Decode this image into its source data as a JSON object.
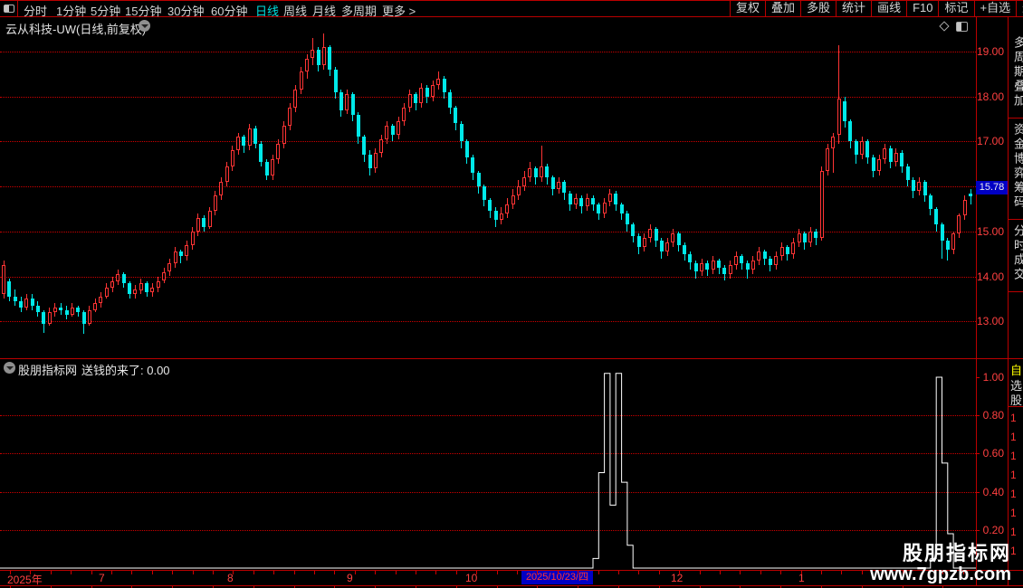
{
  "toolbar": {
    "periods": [
      {
        "label": "分时",
        "active": false
      },
      {
        "label": "1分钟",
        "active": false
      },
      {
        "label": "5分钟",
        "active": false
      },
      {
        "label": "15分钟",
        "active": false
      },
      {
        "label": "30分钟",
        "active": false
      },
      {
        "label": "60分钟",
        "active": false
      },
      {
        "label": "日线",
        "active": true
      },
      {
        "label": "周线",
        "active": false
      },
      {
        "label": "月线",
        "active": false
      },
      {
        "label": "多周期",
        "active": false
      },
      {
        "label": "更多 >",
        "active": false
      }
    ],
    "right_buttons": [
      "复权",
      "叠加",
      "多股",
      "统计",
      "画线",
      "F10",
      "标记",
      "+自选",
      "返回"
    ]
  },
  "title": {
    "text": "云从科技-UW(日线,前复权)"
  },
  "price_axis": {
    "labels": [
      "19.00",
      "18.00",
      "17.00",
      "15.00",
      "14.00",
      "13.00"
    ],
    "current_price": "15.78"
  },
  "indicator_panel": {
    "source": "股朋指标网",
    "name": "送钱的来了",
    "value": "0.00",
    "display": "送钱的来了: 0.00",
    "axis_labels": [
      "1.00",
      "0.80",
      "0.60",
      "0.40",
      "0.20"
    ]
  },
  "time_axis": {
    "month_labels": [
      "2025年",
      "7",
      "8",
      "9",
      "10",
      "12",
      "1"
    ],
    "selected_date": "2025/10/23/四"
  },
  "watermark": {
    "line1": "股朋指标网",
    "line2": "www.7gpzb.com"
  },
  "right_sidebar": {
    "top_tabs": [
      "多周期叠加",
      "资金博弈筹码",
      "分时成交"
    ],
    "watch_tab": "自选股",
    "quote_digits": [
      "1",
      "1",
      "1",
      "1",
      "1",
      "1",
      "1",
      "1"
    ]
  },
  "colors": {
    "background": "#000000",
    "grid_red": "#cf0000",
    "label_red": "#ff4040",
    "up_candle": "#ff3434",
    "down_candle": "#00e9e9",
    "highlight_blue": "#0000c4",
    "active_cyan": "#00e0e0",
    "indicator_line": "#ffffff",
    "watch_yellow": "#ffff00"
  },
  "chart_data": [
    {
      "type": "candlestick",
      "title": "云从科技-UW 日线 前复权",
      "ylim": [
        12.2,
        19.4
      ],
      "y_gridlines": [
        13,
        14,
        15,
        16,
        17,
        18,
        19
      ],
      "last_close": 15.78,
      "x_tick_labels": [
        "2025年",
        "7",
        "8",
        "9",
        "10",
        "2025/10/23/四",
        "12",
        "1"
      ],
      "up_color": "#ff3434",
      "down_color": "#00e9e9",
      "ohlc": [
        [
          13.6,
          14.35,
          13.5,
          14.25
        ],
        [
          13.9,
          13.95,
          13.45,
          13.55
        ],
        [
          13.55,
          13.7,
          13.35,
          13.45
        ],
        [
          13.45,
          13.55,
          13.2,
          13.3
        ],
        [
          13.3,
          13.6,
          13.25,
          13.5
        ],
        [
          13.5,
          13.6,
          13.25,
          13.35
        ],
        [
          13.35,
          13.45,
          13.1,
          13.2
        ],
        [
          13.2,
          13.25,
          12.75,
          12.95
        ],
        [
          12.95,
          13.3,
          12.9,
          13.2
        ],
        [
          13.2,
          13.4,
          13.1,
          13.3
        ],
        [
          13.3,
          13.4,
          13.15,
          13.25
        ],
        [
          13.25,
          13.35,
          13.05,
          13.15
        ],
        [
          13.15,
          13.4,
          13.1,
          13.3
        ],
        [
          13.3,
          13.35,
          13.1,
          13.2
        ],
        [
          13.2,
          13.25,
          12.72,
          12.95
        ],
        [
          12.95,
          13.35,
          12.9,
          13.25
        ],
        [
          13.25,
          13.5,
          13.2,
          13.4
        ],
        [
          13.4,
          13.65,
          13.3,
          13.55
        ],
        [
          13.55,
          13.85,
          13.5,
          13.75
        ],
        [
          13.75,
          14.0,
          13.65,
          13.9
        ],
        [
          13.9,
          14.15,
          13.8,
          14.05
        ],
        [
          14.05,
          14.1,
          13.75,
          13.85
        ],
        [
          13.85,
          13.9,
          13.5,
          13.6
        ],
        [
          13.6,
          13.8,
          13.5,
          13.7
        ],
        [
          13.7,
          13.95,
          13.6,
          13.85
        ],
        [
          13.85,
          13.9,
          13.55,
          13.65
        ],
        [
          13.65,
          13.85,
          13.55,
          13.75
        ],
        [
          13.75,
          14.0,
          13.65,
          13.9
        ],
        [
          13.9,
          14.2,
          13.85,
          14.1
        ],
        [
          14.1,
          14.4,
          14.0,
          14.3
        ],
        [
          14.3,
          14.65,
          14.2,
          14.55
        ],
        [
          14.55,
          14.6,
          14.3,
          14.45
        ],
        [
          14.45,
          14.8,
          14.35,
          14.7
        ],
        [
          14.7,
          15.1,
          14.6,
          15.0
        ],
        [
          15.0,
          15.4,
          14.9,
          15.3
        ],
        [
          15.3,
          15.35,
          15.0,
          15.1
        ],
        [
          15.1,
          15.55,
          15.05,
          15.45
        ],
        [
          15.45,
          15.9,
          15.35,
          15.8
        ],
        [
          15.8,
          16.2,
          15.7,
          16.1
        ],
        [
          16.1,
          16.55,
          16.0,
          16.45
        ],
        [
          16.45,
          16.9,
          16.35,
          16.8
        ],
        [
          16.8,
          17.2,
          16.7,
          17.1
        ],
        [
          17.1,
          17.15,
          16.75,
          16.9
        ],
        [
          16.9,
          17.4,
          16.8,
          17.3
        ],
        [
          17.3,
          17.35,
          16.85,
          16.95
        ],
        [
          16.95,
          17.0,
          16.45,
          16.55
        ],
        [
          16.55,
          16.6,
          16.15,
          16.25
        ],
        [
          16.25,
          16.7,
          16.15,
          16.6
        ],
        [
          16.6,
          17.05,
          16.5,
          16.95
        ],
        [
          16.95,
          17.45,
          16.85,
          17.35
        ],
        [
          17.35,
          17.85,
          17.25,
          17.75
        ],
        [
          17.75,
          18.25,
          17.65,
          18.15
        ],
        [
          18.15,
          18.65,
          18.05,
          18.55
        ],
        [
          18.55,
          18.95,
          18.4,
          18.85
        ],
        [
          18.85,
          19.3,
          18.7,
          19.05
        ],
        [
          19.05,
          19.1,
          18.55,
          18.7
        ],
        [
          18.7,
          19.4,
          18.6,
          19.1
        ],
        [
          19.1,
          19.15,
          18.45,
          18.6
        ],
        [
          18.6,
          18.65,
          17.95,
          18.1
        ],
        [
          18.1,
          18.15,
          17.55,
          17.7
        ],
        [
          17.7,
          18.15,
          17.6,
          18.05
        ],
        [
          18.05,
          18.1,
          17.45,
          17.6
        ],
        [
          17.6,
          17.65,
          16.95,
          17.1
        ],
        [
          17.1,
          17.15,
          16.55,
          16.7
        ],
        [
          16.7,
          16.8,
          16.25,
          16.4
        ],
        [
          16.4,
          16.85,
          16.3,
          16.75
        ],
        [
          16.75,
          17.15,
          16.65,
          17.05
        ],
        [
          17.05,
          17.45,
          16.95,
          17.35
        ],
        [
          17.35,
          17.4,
          17.0,
          17.15
        ],
        [
          17.15,
          17.55,
          17.05,
          17.45
        ],
        [
          17.45,
          17.85,
          17.35,
          17.75
        ],
        [
          17.75,
          18.15,
          17.65,
          18.05
        ],
        [
          18.05,
          18.1,
          17.7,
          17.85
        ],
        [
          17.85,
          18.3,
          17.75,
          18.2
        ],
        [
          18.2,
          18.25,
          17.85,
          18.0
        ],
        [
          18.0,
          18.35,
          17.9,
          18.25
        ],
        [
          18.25,
          18.55,
          18.15,
          18.4
        ],
        [
          18.4,
          18.45,
          17.95,
          18.1
        ],
        [
          18.1,
          18.15,
          17.6,
          17.75
        ],
        [
          17.75,
          17.8,
          17.25,
          17.4
        ],
        [
          17.4,
          17.45,
          16.85,
          17.0
        ],
        [
          17.0,
          17.05,
          16.5,
          16.65
        ],
        [
          16.65,
          16.7,
          16.15,
          16.3
        ],
        [
          16.3,
          16.35,
          15.85,
          16.0
        ],
        [
          16.0,
          16.05,
          15.55,
          15.7
        ],
        [
          15.7,
          15.75,
          15.3,
          15.45
        ],
        [
          15.45,
          15.55,
          15.1,
          15.25
        ],
        [
          15.25,
          15.55,
          15.15,
          15.4
        ],
        [
          15.4,
          15.75,
          15.3,
          15.6
        ],
        [
          15.6,
          15.95,
          15.5,
          15.8
        ],
        [
          15.8,
          16.15,
          15.7,
          16.0
        ],
        [
          16.0,
          16.35,
          15.9,
          16.2
        ],
        [
          16.2,
          16.55,
          16.1,
          16.4
        ],
        [
          16.4,
          16.45,
          16.05,
          16.2
        ],
        [
          16.2,
          16.9,
          16.1,
          16.45
        ],
        [
          16.45,
          16.5,
          16.05,
          16.2
        ],
        [
          16.2,
          16.25,
          15.8,
          15.95
        ],
        [
          15.95,
          16.2,
          15.85,
          16.1
        ],
        [
          16.1,
          16.15,
          15.7,
          15.85
        ],
        [
          15.85,
          15.9,
          15.45,
          15.6
        ],
        [
          15.6,
          15.85,
          15.5,
          15.75
        ],
        [
          15.75,
          15.8,
          15.4,
          15.55
        ],
        [
          15.55,
          15.85,
          15.45,
          15.75
        ],
        [
          15.75,
          15.8,
          15.45,
          15.6
        ],
        [
          15.6,
          15.65,
          15.25,
          15.4
        ],
        [
          15.4,
          15.75,
          15.3,
          15.65
        ],
        [
          15.65,
          15.95,
          15.55,
          15.85
        ],
        [
          15.85,
          15.9,
          15.45,
          15.6
        ],
        [
          15.6,
          15.65,
          15.25,
          15.4
        ],
        [
          15.4,
          15.45,
          15.0,
          15.15
        ],
        [
          15.15,
          15.2,
          14.75,
          14.9
        ],
        [
          14.9,
          14.95,
          14.5,
          14.65
        ],
        [
          14.65,
          14.95,
          14.55,
          14.85
        ],
        [
          14.85,
          15.15,
          14.75,
          15.05
        ],
        [
          15.05,
          15.1,
          14.65,
          14.8
        ],
        [
          14.8,
          14.85,
          14.4,
          14.55
        ],
        [
          14.55,
          14.85,
          14.45,
          14.75
        ],
        [
          14.75,
          15.05,
          14.65,
          14.95
        ],
        [
          14.95,
          15.0,
          14.55,
          14.7
        ],
        [
          14.7,
          14.75,
          14.35,
          14.5
        ],
        [
          14.5,
          14.55,
          14.15,
          14.3
        ],
        [
          14.3,
          14.35,
          13.95,
          14.1
        ],
        [
          14.1,
          14.4,
          14.0,
          14.3
        ],
        [
          14.3,
          14.35,
          14.0,
          14.15
        ],
        [
          14.15,
          14.45,
          14.05,
          14.35
        ],
        [
          14.35,
          14.4,
          14.05,
          14.2
        ],
        [
          14.2,
          14.25,
          13.9,
          14.05
        ],
        [
          14.05,
          14.35,
          13.95,
          14.25
        ],
        [
          14.25,
          14.55,
          14.15,
          14.45
        ],
        [
          14.45,
          14.5,
          14.15,
          14.3
        ],
        [
          14.3,
          14.35,
          13.95,
          14.15
        ],
        [
          14.15,
          14.45,
          14.05,
          14.35
        ],
        [
          14.35,
          14.65,
          14.25,
          14.55
        ],
        [
          14.55,
          14.6,
          14.25,
          14.4
        ],
        [
          14.4,
          14.45,
          14.1,
          14.25
        ],
        [
          14.25,
          14.55,
          14.15,
          14.45
        ],
        [
          14.45,
          14.75,
          14.35,
          14.65
        ],
        [
          14.65,
          14.7,
          14.35,
          14.5
        ],
        [
          14.5,
          14.85,
          14.4,
          14.75
        ],
        [
          14.75,
          15.05,
          14.65,
          14.95
        ],
        [
          14.95,
          15.0,
          14.6,
          14.75
        ],
        [
          14.75,
          15.1,
          14.65,
          15.0
        ],
        [
          15.0,
          15.05,
          14.7,
          14.85
        ],
        [
          14.85,
          16.45,
          14.8,
          16.35
        ],
        [
          16.35,
          16.95,
          16.25,
          16.85
        ],
        [
          16.85,
          17.2,
          16.3,
          17.1
        ],
        [
          17.15,
          19.15,
          16.95,
          17.95
        ],
        [
          17.9,
          18.0,
          17.3,
          17.45
        ],
        [
          17.45,
          17.5,
          16.85,
          17.0
        ],
        [
          17.0,
          17.05,
          16.5,
          16.7
        ],
        [
          16.7,
          17.1,
          16.6,
          17.0
        ],
        [
          17.0,
          17.05,
          16.5,
          16.65
        ],
        [
          16.65,
          16.7,
          16.2,
          16.35
        ],
        [
          16.35,
          16.7,
          16.25,
          16.6
        ],
        [
          16.6,
          16.95,
          16.5,
          16.85
        ],
        [
          16.85,
          16.9,
          16.4,
          16.55
        ],
        [
          16.55,
          16.85,
          16.45,
          16.75
        ],
        [
          16.75,
          16.8,
          16.3,
          16.45
        ],
        [
          16.45,
          16.5,
          16.0,
          16.15
        ],
        [
          16.15,
          16.2,
          15.75,
          15.9
        ],
        [
          15.9,
          16.2,
          15.8,
          16.1
        ],
        [
          16.1,
          16.15,
          15.65,
          15.8
        ],
        [
          15.8,
          15.85,
          15.35,
          15.5
        ],
        [
          15.5,
          15.55,
          15.0,
          15.15
        ],
        [
          15.15,
          15.2,
          14.4,
          14.8
        ],
        [
          14.8,
          14.85,
          14.35,
          14.6
        ],
        [
          14.6,
          15.0,
          14.5,
          14.95
        ],
        [
          14.95,
          15.4,
          14.85,
          15.35
        ],
        [
          15.35,
          15.8,
          15.25,
          15.7
        ],
        [
          15.85,
          15.95,
          15.6,
          15.78
        ]
      ]
    },
    {
      "type": "line",
      "name": "送钱的来了",
      "current_value": 0.0,
      "ylim": [
        0,
        1.05
      ],
      "y_gridlines": [
        0.2,
        0.4,
        0.6,
        0.8,
        1.0
      ],
      "color": "#ffffff",
      "values": [
        0,
        0,
        0,
        0,
        0,
        0,
        0,
        0,
        0,
        0,
        0,
        0,
        0,
        0,
        0,
        0,
        0,
        0,
        0,
        0,
        0,
        0,
        0,
        0,
        0,
        0,
        0,
        0,
        0,
        0,
        0,
        0,
        0,
        0,
        0,
        0,
        0,
        0,
        0,
        0,
        0,
        0,
        0,
        0,
        0,
        0,
        0,
        0,
        0,
        0,
        0,
        0,
        0,
        0,
        0,
        0,
        0,
        0,
        0,
        0,
        0,
        0,
        0,
        0,
        0,
        0,
        0,
        0,
        0,
        0,
        0,
        0,
        0,
        0,
        0,
        0,
        0,
        0,
        0,
        0,
        0,
        0,
        0,
        0,
        0,
        0,
        0,
        0,
        0,
        0,
        0,
        0,
        0,
        0,
        0,
        0,
        0,
        0,
        0,
        0,
        0,
        0,
        0,
        0.05,
        0.5,
        1.02,
        0.33,
        1.02,
        0.45,
        0.12,
        0,
        0,
        0,
        0,
        0,
        0,
        0,
        0,
        0,
        0,
        0,
        0,
        0,
        0,
        0,
        0,
        0,
        0,
        0,
        0,
        0,
        0,
        0,
        0,
        0,
        0,
        0,
        0,
        0,
        0,
        0,
        0,
        0,
        0,
        0,
        0,
        0,
        0,
        0,
        0,
        0,
        0,
        0,
        0,
        0,
        0,
        0,
        0,
        0,
        0,
        0,
        0,
        0.05,
        1.0,
        0.55,
        0.18,
        0,
        0,
        0,
        0
      ]
    }
  ]
}
